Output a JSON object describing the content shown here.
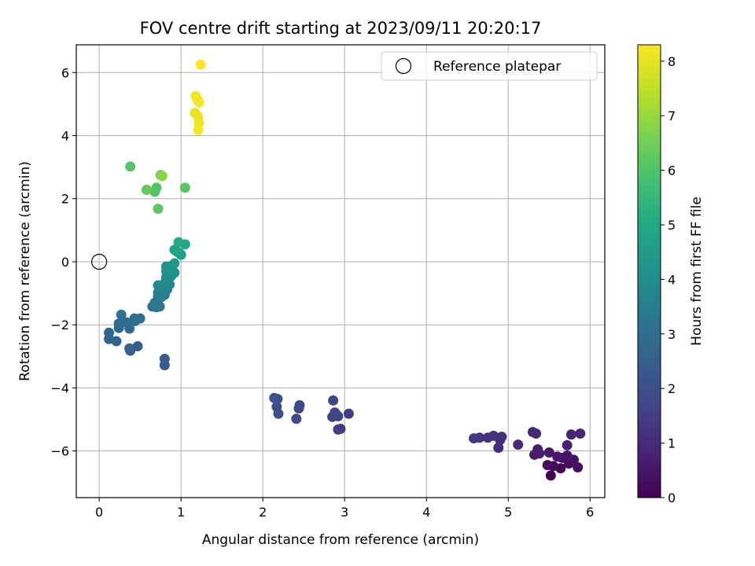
{
  "chart_data": {
    "type": "scatter",
    "title": "FOV centre drift starting at 2023/09/11 20:20:17",
    "xlabel": "Angular distance from reference (arcmin)",
    "ylabel": "Rotation from reference (arcmin)",
    "xlim": [
      -0.28,
      6.18
    ],
    "ylim": [
      -7.48,
      6.88
    ],
    "xticks": [
      0,
      1,
      2,
      3,
      4,
      5,
      6
    ],
    "yticks": [
      -6,
      -4,
      -2,
      0,
      2,
      4,
      6
    ],
    "xtick_labels": [
      "0",
      "1",
      "2",
      "3",
      "4",
      "5",
      "6"
    ],
    "ytick_labels": [
      "−6",
      "−4",
      "−2",
      "0",
      "2",
      "4",
      "6"
    ],
    "grid": true,
    "legend": {
      "placement": "upper right",
      "entries": [
        "Reference platepar"
      ]
    },
    "reference_point": {
      "name": "Reference platepar",
      "x": 0,
      "y": 0
    },
    "colorbar": {
      "label": "Hours from first FF file",
      "colormap": "viridis",
      "range": [
        0,
        8.3
      ],
      "ticks": [
        0,
        1,
        2,
        3,
        4,
        5,
        6,
        7,
        8
      ],
      "tick_labels": [
        "0",
        "1",
        "2",
        "3",
        "4",
        "5",
        "6",
        "7",
        "8"
      ]
    },
    "series": [
      {
        "color_by": "hours",
        "points": [
          [
            5.52,
            -6.78,
            0.05
          ],
          [
            5.64,
            -6.55,
            0.1
          ],
          [
            5.48,
            -6.45,
            0.15
          ],
          [
            5.55,
            -6.48,
            0.2
          ],
          [
            5.74,
            -6.4,
            0.25
          ],
          [
            5.85,
            -6.52,
            0.3
          ],
          [
            5.8,
            -6.28,
            0.35
          ],
          [
            5.66,
            -6.22,
            0.4
          ],
          [
            5.72,
            -6.15,
            0.45
          ],
          [
            5.6,
            -6.18,
            0.5
          ],
          [
            5.5,
            -6.05,
            0.55
          ],
          [
            5.38,
            -6.08,
            0.6
          ],
          [
            5.32,
            -6.12,
            0.65
          ],
          [
            5.36,
            -5.95,
            0.7
          ],
          [
            5.72,
            -5.82,
            0.75
          ],
          [
            5.77,
            -5.48,
            0.8
          ],
          [
            5.88,
            -5.45,
            0.85
          ],
          [
            5.3,
            -5.4,
            0.9
          ],
          [
            5.34,
            -5.45,
            0.95
          ],
          [
            5.12,
            -5.8,
            1.0
          ],
          [
            4.88,
            -5.9,
            1.05
          ],
          [
            4.9,
            -5.65,
            1.1
          ],
          [
            4.92,
            -5.55,
            1.15
          ],
          [
            4.82,
            -5.52,
            1.2
          ],
          [
            4.75,
            -5.58,
            1.25
          ],
          [
            4.65,
            -5.58,
            1.3
          ],
          [
            4.58,
            -5.6,
            1.35
          ],
          [
            2.95,
            -5.3,
            1.4
          ],
          [
            2.92,
            -5.32,
            1.45
          ],
          [
            3.05,
            -4.82,
            1.5
          ],
          [
            2.9,
            -4.85,
            1.55
          ],
          [
            2.85,
            -4.92,
            1.6
          ],
          [
            2.88,
            -4.78,
            1.65
          ],
          [
            2.92,
            -4.9,
            1.7
          ],
          [
            2.86,
            -4.4,
            1.75
          ],
          [
            2.45,
            -4.55,
            1.8
          ],
          [
            2.44,
            -4.65,
            1.85
          ],
          [
            2.41,
            -4.98,
            1.9
          ],
          [
            2.19,
            -4.82,
            1.95
          ],
          [
            2.17,
            -4.6,
            2.0
          ],
          [
            2.18,
            -4.35,
            2.05
          ],
          [
            2.14,
            -4.32,
            2.1
          ],
          [
            0.8,
            -3.28,
            2.3
          ],
          [
            0.8,
            -3.08,
            2.4
          ],
          [
            0.38,
            -2.82,
            2.5
          ],
          [
            0.37,
            -2.75,
            2.55
          ],
          [
            0.47,
            -2.68,
            2.6
          ],
          [
            0.21,
            -2.52,
            2.65
          ],
          [
            0.12,
            -2.45,
            2.7
          ],
          [
            0.12,
            -2.25,
            2.75
          ],
          [
            0.24,
            -2.1,
            2.8
          ],
          [
            0.37,
            -2.12,
            2.85
          ],
          [
            0.24,
            -1.96,
            2.9
          ],
          [
            0.33,
            -1.92,
            2.95
          ],
          [
            0.44,
            -1.88,
            3.0
          ],
          [
            0.43,
            -1.8,
            3.05
          ],
          [
            0.5,
            -1.8,
            3.1
          ],
          [
            0.27,
            -1.68,
            3.15
          ],
          [
            0.65,
            -1.42,
            3.2
          ],
          [
            0.7,
            -1.44,
            3.25
          ],
          [
            0.74,
            -1.42,
            3.3
          ],
          [
            0.68,
            -1.3,
            3.35
          ],
          [
            0.72,
            -1.1,
            3.4
          ],
          [
            0.76,
            -1.12,
            3.45
          ],
          [
            0.72,
            -0.98,
            3.5
          ],
          [
            0.8,
            -1.05,
            3.55
          ],
          [
            0.75,
            -0.9,
            3.6
          ],
          [
            0.83,
            -0.88,
            3.65
          ],
          [
            0.78,
            -0.8,
            3.7
          ],
          [
            0.72,
            -0.75,
            3.75
          ],
          [
            0.86,
            -0.72,
            3.8
          ],
          [
            0.8,
            -0.68,
            3.85
          ],
          [
            0.84,
            -0.6,
            3.9
          ],
          [
            0.82,
            -0.5,
            3.95
          ],
          [
            0.88,
            -0.45,
            4.0
          ],
          [
            0.92,
            -0.35,
            4.1
          ],
          [
            0.82,
            -0.3,
            4.15
          ],
          [
            0.86,
            -0.2,
            4.2
          ],
          [
            0.82,
            -0.15,
            4.25
          ],
          [
            0.9,
            -0.1,
            4.3
          ],
          [
            0.92,
            -0.05,
            4.4
          ],
          [
            0.95,
            0.32,
            4.5
          ],
          [
            0.98,
            0.28,
            4.6
          ],
          [
            1.0,
            0.22,
            4.7
          ],
          [
            0.92,
            0.38,
            4.8
          ],
          [
            1.05,
            0.55,
            4.9
          ],
          [
            0.97,
            0.62,
            5.0
          ],
          [
            0.68,
            2.22,
            6.0
          ],
          [
            0.7,
            2.35,
            6.05
          ],
          [
            0.38,
            3.02,
            6.1
          ],
          [
            1.05,
            2.35,
            6.15
          ],
          [
            0.72,
            1.68,
            6.2
          ],
          [
            0.58,
            2.28,
            6.3
          ],
          [
            0.75,
            2.75,
            6.5
          ],
          [
            0.77,
            2.72,
            6.8
          ],
          [
            1.24,
            6.25,
            8.3
          ],
          [
            1.18,
            5.25,
            8.1
          ],
          [
            1.2,
            5.15,
            8.15
          ],
          [
            1.22,
            5.05,
            8.2
          ],
          [
            1.17,
            4.72,
            8.0
          ],
          [
            1.21,
            4.6,
            8.05
          ],
          [
            1.22,
            4.4,
            8.1
          ],
          [
            1.21,
            4.18,
            8.2
          ]
        ]
      }
    ]
  }
}
